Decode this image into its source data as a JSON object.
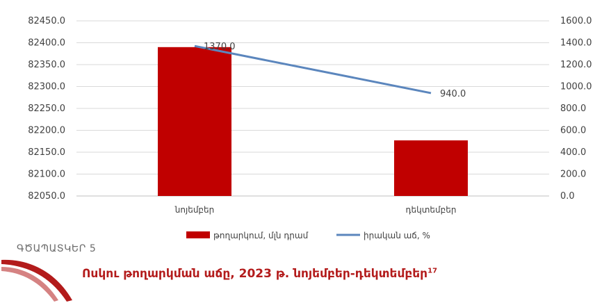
{
  "figure": {
    "number": "ԳԾԱՊԱՏԿԵՐ 5",
    "title": "Ոսկու թողարկման աճը, 2023 թ. նոյեմբեր-դեկտեմբեր",
    "footnote": "17"
  },
  "chart_data": {
    "type": "bar",
    "categories": [
      "նոյեմբեր",
      "դեկտեմբեր"
    ],
    "series": [
      {
        "name": "թողարկում, մլն դրամ",
        "type": "bar",
        "axis": "left",
        "color": "#c00000",
        "values": [
          82390.0,
          82177.0
        ]
      },
      {
        "name": "իրական աճ, %",
        "type": "line",
        "axis": "right",
        "color": "#5b86bd",
        "values": [
          1370.0,
          940.0
        ],
        "data_labels": [
          "1370.0",
          "940.0"
        ]
      }
    ],
    "y_left": {
      "min": 82050,
      "max": 82450,
      "step": 50,
      "ticks": [
        "82050.0",
        "82100.0",
        "82150.0",
        "82200.0",
        "82250.0",
        "82300.0",
        "82350.0",
        "82400.0",
        "82450.0"
      ]
    },
    "y_right": {
      "min": 0,
      "max": 1600,
      "step": 200,
      "ticks": [
        "0.0",
        "200.0",
        "400.0",
        "600.0",
        "800.0",
        "1000.0",
        "1200.0",
        "1400.0",
        "1600.0"
      ]
    },
    "grid": true,
    "legend": "bottom"
  }
}
